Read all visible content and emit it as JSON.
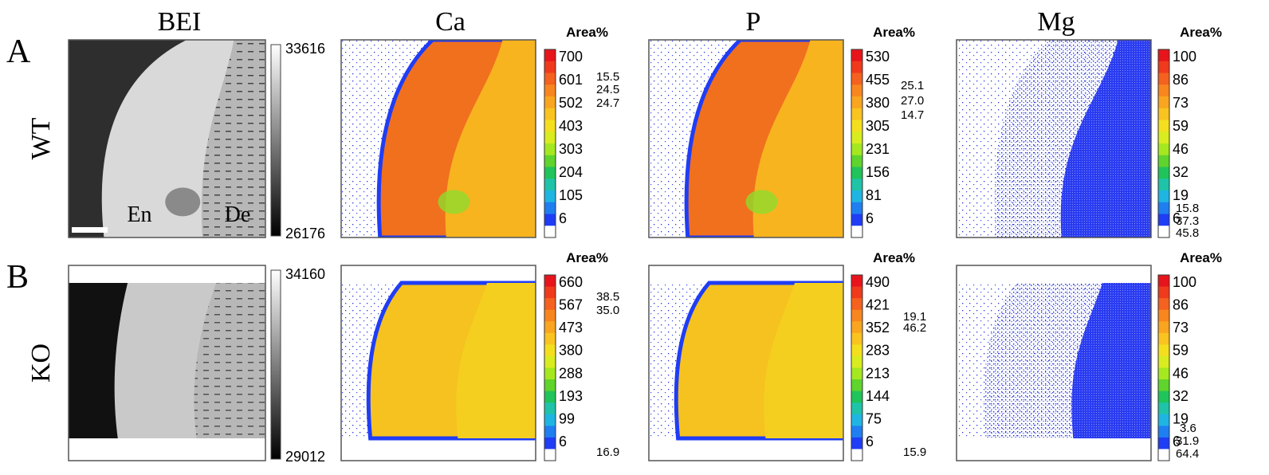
{
  "columns": [
    "BEI",
    "Ca",
    "P",
    "Mg"
  ],
  "rows": [
    {
      "letter": "A",
      "label": "WT",
      "bei": {
        "scale_max": "33616",
        "scale_min": "26176",
        "labels": [
          "En",
          "De"
        ]
      },
      "maps": [
        {
          "unit": "Area%",
          "ticks": [
            "700",
            "601",
            "502",
            "403",
            "303",
            "204",
            "105",
            "6"
          ],
          "areas": [
            "15.5",
            "24.5",
            "24.7"
          ]
        },
        {
          "unit": "Area%",
          "ticks": [
            "530",
            "455",
            "380",
            "305",
            "231",
            "156",
            "81",
            "6"
          ],
          "areas": [
            "25.1",
            "27.0",
            "14.7"
          ]
        },
        {
          "unit": "Area%",
          "ticks": [
            "100",
            "86",
            "73",
            "59",
            "46",
            "32",
            "19",
            "6"
          ],
          "areas": [
            "15.8",
            "37.3",
            "45.8"
          ]
        }
      ]
    },
    {
      "letter": "B",
      "label": "KO",
      "bei": {
        "scale_max": "34160",
        "scale_min": "29012"
      },
      "maps": [
        {
          "unit": "Area%",
          "ticks": [
            "660",
            "567",
            "473",
            "380",
            "288",
            "193",
            "99",
            "6"
          ],
          "areas": [
            "38.5",
            "35.0",
            "16.9"
          ]
        },
        {
          "unit": "Area%",
          "ticks": [
            "490",
            "421",
            "352",
            "283",
            "213",
            "144",
            "75",
            "6"
          ],
          "areas": [
            "19.1",
            "46.2",
            "15.9"
          ]
        },
        {
          "unit": "Area%",
          "ticks": [
            "100",
            "86",
            "73",
            "59",
            "46",
            "32",
            "19",
            "6"
          ],
          "areas": [
            "3.6",
            "31.9",
            "64.4"
          ]
        }
      ]
    }
  ]
}
